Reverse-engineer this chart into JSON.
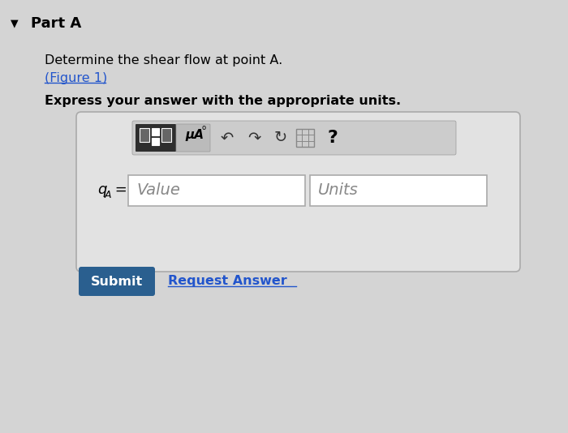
{
  "bg_color": "#d4d4d4",
  "title_arrow": "▼",
  "part_label": "Part A",
  "question_line1": "Determine the shear flow at point A.",
  "figure_link": "(Figure 1)",
  "bold_line": "Express your answer with the appropriate units.",
  "label_text": "q",
  "label_sub": "A",
  "label_eq": " =",
  "value_placeholder": "Value",
  "units_placeholder": "Units",
  "submit_text": "Submit",
  "request_text": "Request Answer",
  "submit_bg": "#2a5f8f",
  "submit_fg": "#ffffff",
  "mu_a_text": "μA",
  "question_mark": "?",
  "input_box_bg": "#ffffff",
  "link_color": "#2255cc",
  "outer_box_bg": "#e2e2e2",
  "outer_box_edge": "#aaaaaa",
  "toolbar_bg": "#cccccc",
  "dark_icon_bg": "#2e2e2e"
}
